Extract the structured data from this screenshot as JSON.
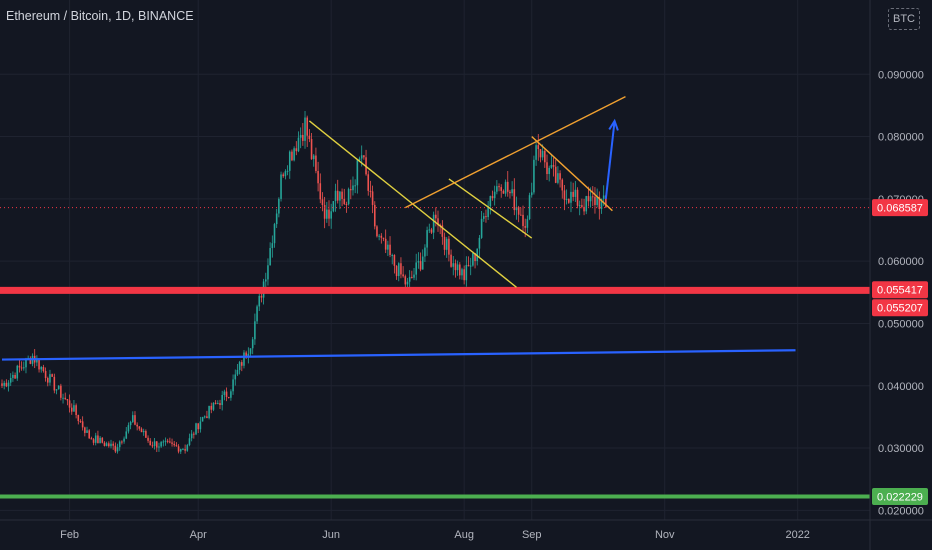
{
  "header": {
    "title": "Ethereum / Bitcoin, 1D, BINANCE",
    "currency": "BTC"
  },
  "chart_data": {
    "type": "candlestick",
    "title": "Ethereum / Bitcoin, 1D, BINANCE",
    "x_ticks": [
      "Feb",
      "Apr",
      "Jun",
      "Aug",
      "Sep",
      "Nov",
      "2022"
    ],
    "x_tick_dates": [
      "2021-02-01",
      "2021-04-01",
      "2021-06-01",
      "2021-08-01",
      "2021-09-01",
      "2021-11-01",
      "2022-01-01"
    ],
    "y_ticks": [
      "0.090000",
      "0.080000",
      "0.070000",
      "0.060000",
      "0.050000",
      "0.040000",
      "0.030000",
      "0.020000"
    ],
    "ylim": [
      0.0195,
      0.1005
    ],
    "grid": true,
    "colors": {
      "up": "#26a69a",
      "down": "#ef5350",
      "background": "#131722",
      "grid": "#1f2330",
      "axis_text": "#b2b5be"
    },
    "price_labels": [
      {
        "value": 0.068587,
        "text": "0.068587",
        "color": "#f23645"
      },
      {
        "value": 0.055417,
        "text": "0.055417",
        "color": "#f23645"
      },
      {
        "value": 0.055207,
        "text": "0.055207",
        "color": "#f23645"
      },
      {
        "value": 0.022229,
        "text": "0.022229",
        "color": "#4caf50"
      }
    ],
    "horizontal_levels": [
      {
        "value": 0.068587,
        "color": "#f23645",
        "style": "dotted"
      },
      {
        "value": 0.05531,
        "color": "#f23645",
        "style": "thick"
      },
      {
        "value": 0.022229,
        "color": "#4caf50",
        "style": "thick"
      }
    ],
    "trendlines": [
      {
        "color": "#2962ff",
        "from": [
          "2021-01-01",
          0.0442
        ],
        "to": [
          "2021-12-31",
          0.0457
        ]
      },
      {
        "color": "#e0d040",
        "from": [
          "2021-05-22",
          0.0825
        ],
        "to": [
          "2021-08-25",
          0.0558
        ]
      },
      {
        "color": "#e0d040",
        "from": [
          "2021-07-25",
          0.0732
        ],
        "to": [
          "2021-09-01",
          0.0637
        ]
      },
      {
        "color": "#f0a030",
        "from": [
          "2021-07-05",
          0.0686
        ],
        "to": [
          "2021-10-14",
          0.0864
        ]
      },
      {
        "color": "#f0a030",
        "from": [
          "2021-09-01",
          0.08
        ],
        "to": [
          "2021-10-08",
          0.0681
        ]
      }
    ],
    "projection_arrow": {
      "color": "#2962ff",
      "from": [
        "2021-10-05",
        0.07
      ],
      "to": [
        "2021-10-09",
        0.0825
      ]
    },
    "anchors": [
      [
        "2021-01-01",
        0.04
      ],
      [
        "2021-01-15",
        0.0448
      ],
      [
        "2021-01-25",
        0.04
      ],
      [
        "2021-02-03",
        0.036
      ],
      [
        "2021-02-10",
        0.0318
      ],
      [
        "2021-02-22",
        0.03
      ],
      [
        "2021-03-02",
        0.0345
      ],
      [
        "2021-03-10",
        0.0308
      ],
      [
        "2021-03-26",
        0.03
      ],
      [
        "2021-04-02",
        0.0345
      ],
      [
        "2021-04-15",
        0.039
      ],
      [
        "2021-04-25",
        0.047
      ],
      [
        "2021-05-03",
        0.06
      ],
      [
        "2021-05-10",
        0.075
      ],
      [
        "2021-05-20",
        0.082
      ],
      [
        "2021-05-26",
        0.072
      ],
      [
        "2021-05-30",
        0.067
      ],
      [
        "2021-06-03",
        0.072
      ],
      [
        "2021-06-08",
        0.069
      ],
      [
        "2021-06-15",
        0.077
      ],
      [
        "2021-06-22",
        0.064
      ],
      [
        "2021-06-29",
        0.06
      ],
      [
        "2021-07-06",
        0.056
      ],
      [
        "2021-07-12",
        0.06
      ],
      [
        "2021-07-19",
        0.068
      ],
      [
        "2021-07-25",
        0.061
      ],
      [
        "2021-08-01",
        0.0575
      ],
      [
        "2021-08-06",
        0.061
      ],
      [
        "2021-08-12",
        0.07
      ],
      [
        "2021-08-18",
        0.073
      ],
      [
        "2021-08-25",
        0.069
      ],
      [
        "2021-08-30",
        0.066
      ],
      [
        "2021-09-03",
        0.0795
      ],
      [
        "2021-09-08",
        0.075
      ],
      [
        "2021-09-14",
        0.072
      ],
      [
        "2021-09-20",
        0.07
      ],
      [
        "2021-09-26",
        0.069
      ],
      [
        "2021-10-01",
        0.07
      ],
      [
        "2021-10-05",
        0.0686
      ]
    ]
  }
}
